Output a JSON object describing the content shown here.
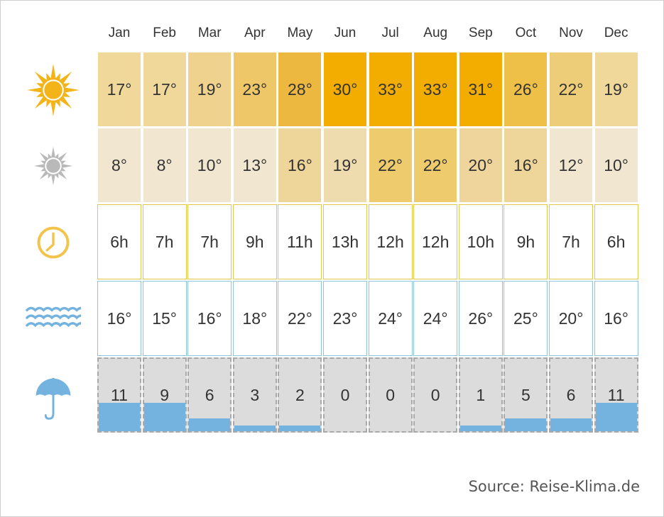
{
  "chart_data": {
    "type": "table",
    "months": [
      "Jan",
      "Feb",
      "Mar",
      "Apr",
      "May",
      "Jun",
      "Jul",
      "Aug",
      "Sep",
      "Oct",
      "Nov",
      "Dec"
    ],
    "rows": [
      {
        "icon": "sun-icon",
        "values": [
          "17°",
          "17°",
          "19°",
          "23°",
          "28°",
          "30°",
          "33°",
          "33°",
          "31°",
          "26°",
          "22°",
          "19°"
        ],
        "colors": [
          "#f0d89a",
          "#f0d89a",
          "#efd28e",
          "#eec868",
          "#edb83f",
          "#f2ad00",
          "#f2ad00",
          "#f2ad00",
          "#f2ad00",
          "#efc048",
          "#eecd79",
          "#f0d89a"
        ]
      },
      {
        "icon": "night-sun-icon",
        "values": [
          "8°",
          "8°",
          "10°",
          "13°",
          "16°",
          "19°",
          "22°",
          "22°",
          "20°",
          "16°",
          "12°",
          "10°"
        ],
        "colors": [
          "#f1e6cf",
          "#f1e6cf",
          "#f1e6cf",
          "#f1e6cf",
          "#eed59a",
          "#efdcae",
          "#eecb6d",
          "#eecb6d",
          "#efd59b",
          "#eed59a",
          "#f1e6cf",
          "#f1e6cf"
        ]
      },
      {
        "icon": "clock-icon",
        "values": [
          "6h",
          "7h",
          "7h",
          "9h",
          "11h",
          "13h",
          "12h",
          "12h",
          "10h",
          "9h",
          "7h",
          "6h"
        ]
      },
      {
        "icon": "waves-icon",
        "values": [
          "16°",
          "15°",
          "16°",
          "18°",
          "22°",
          "23°",
          "24°",
          "24°",
          "26°",
          "25°",
          "20°",
          "16°"
        ]
      },
      {
        "icon": "umbrella-icon",
        "values": [
          "11",
          "9",
          "6",
          "3",
          "2",
          "0",
          "0",
          "0",
          "1",
          "5",
          "6",
          "11"
        ],
        "fill_fraction": [
          0.39,
          0.39,
          0.18,
          0.08,
          0.08,
          0,
          0,
          0,
          0.08,
          0.18,
          0.18,
          0.39
        ]
      }
    ],
    "colors": {
      "sun": "#f2b418",
      "gray_sun": "#b9b9b9",
      "clock": "#f2c44c",
      "water": "#74b3df",
      "rain_fill": "#74b3df"
    }
  },
  "source": "Source: Reise-Klima.de"
}
